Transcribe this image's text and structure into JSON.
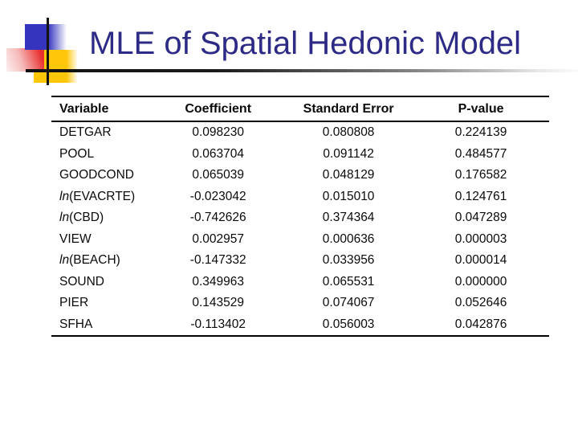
{
  "slide": {
    "title": "MLE of Spatial Hedonic Model"
  },
  "colors": {
    "title_text": "#2d2b85",
    "accent_blue": "#3434bf",
    "accent_red": "#e93030",
    "accent_yellow": "#ffc60a",
    "table_rule": "#000000"
  },
  "table": {
    "headers": [
      "Variable",
      "Coefficient",
      "Standard Error",
      "P-value"
    ],
    "rows": [
      [
        "DETGAR",
        "0.098230",
        "0.080808",
        "0.224139"
      ],
      [
        "POOL",
        "0.063704",
        "0.091142",
        "0.484577"
      ],
      [
        "GOODCOND",
        "0.065039",
        "0.048129",
        "0.176582"
      ],
      [
        "ln(EVACRTE)",
        "-0.023042",
        "0.015010",
        "0.124761"
      ],
      [
        "ln(CBD)",
        "-0.742626",
        "0.374364",
        "0.047289"
      ],
      [
        "VIEW",
        "0.002957",
        "0.000636",
        "0.000003"
      ],
      [
        "ln(BEACH)",
        "-0.147332",
        "0.033956",
        "0.000014"
      ],
      [
        "SOUND",
        "0.349963",
        "0.065531",
        "0.000000"
      ],
      [
        "PIER",
        "0.143529",
        "0.074067",
        "0.052646"
      ],
      [
        "SFHA",
        "-0.113402",
        "0.056003",
        "0.042876"
      ]
    ]
  }
}
